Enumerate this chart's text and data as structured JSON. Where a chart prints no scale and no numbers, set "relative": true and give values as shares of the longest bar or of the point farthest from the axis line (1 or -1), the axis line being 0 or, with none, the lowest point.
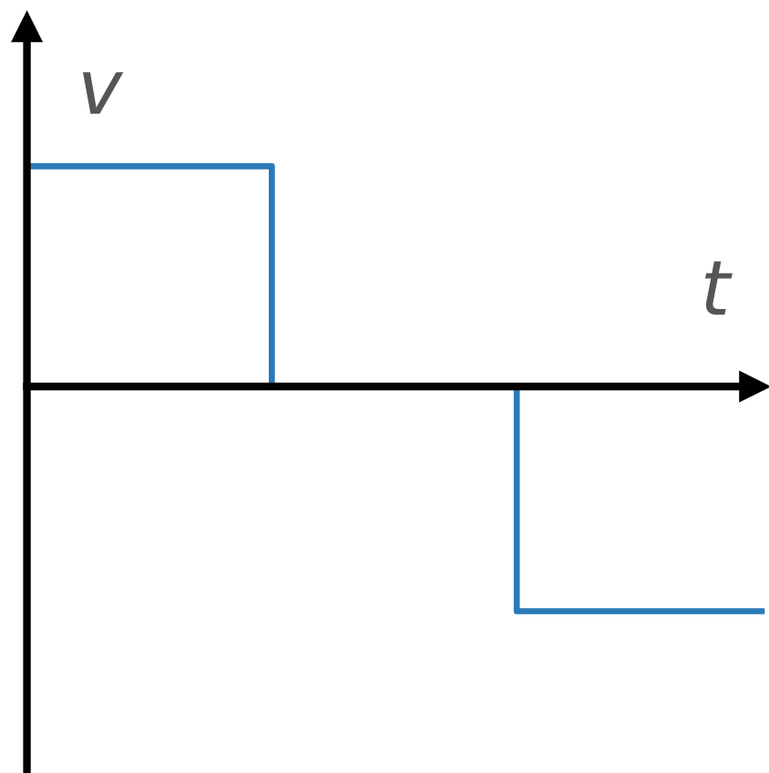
{
  "chart_data": {
    "type": "step",
    "xlabel": "t",
    "ylabel": "v",
    "categories": [
      null,
      null,
      null,
      null
    ],
    "color": "#2a7ab8",
    "values": [
      0.98,
      0,
      -1,
      -1
    ],
    "relative": true,
    "grid": false
  }
}
